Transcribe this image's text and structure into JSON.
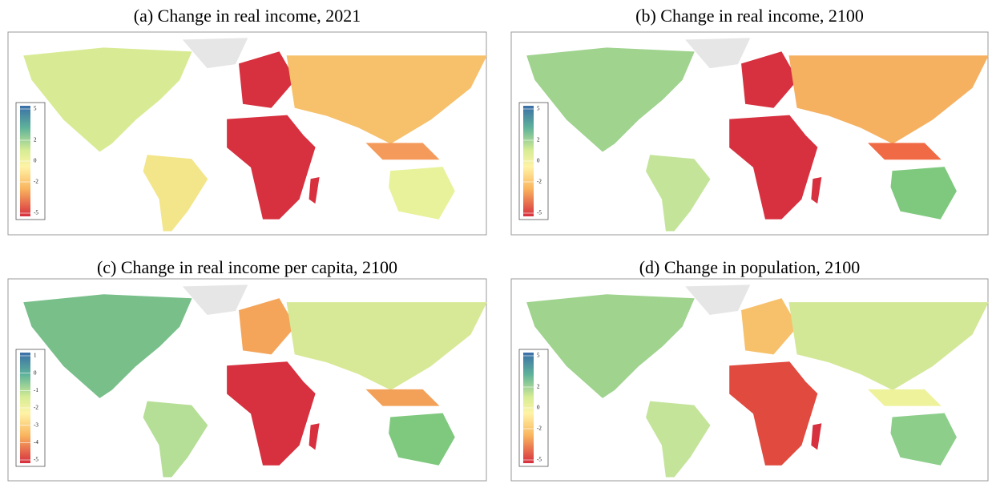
{
  "panels": [
    {
      "title": "(a) Change in real income, 2021",
      "legend": {
        "ticks": [
          5,
          2,
          0,
          -2,
          -5
        ]
      }
    },
    {
      "title": "(b) Change in real income, 2100",
      "legend": {
        "ticks": [
          5,
          2,
          0,
          -2,
          -5
        ]
      }
    },
    {
      "title": "(c) Change in real income per capita, 2100",
      "legend": {
        "ticks": [
          1,
          0,
          -1,
          -2,
          -3,
          -4,
          -5
        ]
      }
    },
    {
      "title": "(d) Change in population, 2100",
      "legend": {
        "ticks": [
          5,
          2,
          0,
          -2,
          -5
        ]
      }
    }
  ]
}
